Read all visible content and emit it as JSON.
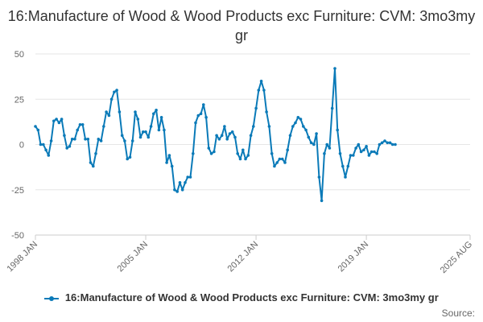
{
  "chart_data": {
    "type": "line",
    "title": "16:Manufacture of Wood & Wood Products exc Furniture: CVM: 3mo3my gr",
    "xlabel": "",
    "ylabel": "",
    "ylim": [
      -50,
      50
    ],
    "yticks": [
      50,
      25,
      0,
      -25,
      -50
    ],
    "xlim": [
      "1998-01",
      "2025-08"
    ],
    "xticks": [
      "1998 JAN",
      "2005 JAN",
      "2012 JAN",
      "2019 JAN",
      "2025 AUG"
    ],
    "grid": true,
    "legend_position": "bottom",
    "color": "#0a7ab8",
    "series": [
      {
        "name": "16:Manufacture of Wood & Wood Products exc Furniture: CVM: 3mo3my gr",
        "points": [
          [
            "1998-01",
            10
          ],
          [
            "1998-03",
            8
          ],
          [
            "1998-05",
            0
          ],
          [
            "1998-07",
            0
          ],
          [
            "1998-09",
            -3
          ],
          [
            "1998-11",
            -6
          ],
          [
            "1999-01",
            2
          ],
          [
            "1999-03",
            13
          ],
          [
            "1999-05",
            14
          ],
          [
            "1999-07",
            12
          ],
          [
            "1999-09",
            14
          ],
          [
            "1999-11",
            5
          ],
          [
            "2000-01",
            -2
          ],
          [
            "2000-03",
            -1
          ],
          [
            "2000-05",
            3
          ],
          [
            "2000-07",
            3
          ],
          [
            "2000-09",
            8
          ],
          [
            "2000-11",
            11
          ],
          [
            "2001-01",
            11
          ],
          [
            "2001-03",
            3
          ],
          [
            "2001-05",
            3
          ],
          [
            "2001-07",
            -10
          ],
          [
            "2001-09",
            -12
          ],
          [
            "2001-11",
            -5
          ],
          [
            "2002-01",
            3
          ],
          [
            "2002-03",
            2
          ],
          [
            "2002-05",
            10
          ],
          [
            "2002-07",
            18
          ],
          [
            "2002-09",
            16
          ],
          [
            "2002-11",
            25
          ],
          [
            "2003-01",
            29
          ],
          [
            "2003-03",
            30
          ],
          [
            "2003-05",
            18
          ],
          [
            "2003-07",
            5
          ],
          [
            "2003-09",
            2
          ],
          [
            "2003-11",
            -8
          ],
          [
            "2004-01",
            -7
          ],
          [
            "2004-03",
            2
          ],
          [
            "2004-05",
            18
          ],
          [
            "2004-07",
            14
          ],
          [
            "2004-09",
            4
          ],
          [
            "2004-11",
            7
          ],
          [
            "2005-01",
            7
          ],
          [
            "2005-03",
            4
          ],
          [
            "2005-05",
            10
          ],
          [
            "2005-07",
            17
          ],
          [
            "2005-09",
            19
          ],
          [
            "2005-11",
            8
          ],
          [
            "2006-01",
            15
          ],
          [
            "2006-03",
            8
          ],
          [
            "2006-05",
            -10
          ],
          [
            "2006-07",
            -6
          ],
          [
            "2006-09",
            -12
          ],
          [
            "2006-11",
            -25
          ],
          [
            "2007-01",
            -26
          ],
          [
            "2007-03",
            -21
          ],
          [
            "2007-05",
            -25
          ],
          [
            "2007-07",
            -21
          ],
          [
            "2007-09",
            -18
          ],
          [
            "2007-11",
            -18
          ],
          [
            "2008-01",
            -5
          ],
          [
            "2008-03",
            12
          ],
          [
            "2008-05",
            16
          ],
          [
            "2008-07",
            17
          ],
          [
            "2008-09",
            22
          ],
          [
            "2008-11",
            15
          ],
          [
            "2009-01",
            -2
          ],
          [
            "2009-03",
            -5
          ],
          [
            "2009-05",
            -4
          ],
          [
            "2009-07",
            5
          ],
          [
            "2009-09",
            3
          ],
          [
            "2009-11",
            5
          ],
          [
            "2010-01",
            10
          ],
          [
            "2010-03",
            3
          ],
          [
            "2010-05",
            6
          ],
          [
            "2010-07",
            7
          ],
          [
            "2010-09",
            4
          ],
          [
            "2010-11",
            -5
          ],
          [
            "2011-01",
            -8
          ],
          [
            "2011-03",
            -3
          ],
          [
            "2011-05",
            -8
          ],
          [
            "2011-07",
            -6
          ],
          [
            "2011-09",
            5
          ],
          [
            "2011-11",
            10
          ],
          [
            "2012-01",
            20
          ],
          [
            "2012-03",
            30
          ],
          [
            "2012-05",
            35
          ],
          [
            "2012-07",
            30
          ],
          [
            "2012-09",
            18
          ],
          [
            "2012-11",
            10
          ],
          [
            "2013-01",
            -5
          ],
          [
            "2013-03",
            -12
          ],
          [
            "2013-05",
            -10
          ],
          [
            "2013-07",
            -8
          ],
          [
            "2013-09",
            -8
          ],
          [
            "2013-11",
            -10
          ],
          [
            "2014-01",
            -3
          ],
          [
            "2014-03",
            5
          ],
          [
            "2014-05",
            10
          ],
          [
            "2014-07",
            12
          ],
          [
            "2014-09",
            15
          ],
          [
            "2014-11",
            14
          ],
          [
            "2015-01",
            10
          ],
          [
            "2015-03",
            8
          ],
          [
            "2015-05",
            4
          ],
          [
            "2015-07",
            1
          ],
          [
            "2015-09",
            0
          ],
          [
            "2015-11",
            6
          ],
          [
            "2016-01",
            -18
          ],
          [
            "2016-03",
            -31
          ],
          [
            "2016-05",
            -5
          ],
          [
            "2016-07",
            0
          ],
          [
            "2016-09",
            -2
          ],
          [
            "2016-11",
            20
          ],
          [
            "2017-01",
            42
          ],
          [
            "2017-03",
            8
          ],
          [
            "2017-05",
            -5
          ],
          [
            "2017-07",
            -12
          ],
          [
            "2017-09",
            -18
          ],
          [
            "2017-11",
            -12
          ],
          [
            "2018-01",
            -6
          ],
          [
            "2018-03",
            -6
          ],
          [
            "2018-05",
            -2
          ],
          [
            "2018-07",
            0
          ],
          [
            "2018-09",
            -4
          ],
          [
            "2018-11",
            -3
          ],
          [
            "2019-01",
            -1
          ],
          [
            "2019-03",
            -6
          ],
          [
            "2019-05",
            -4
          ],
          [
            "2019-07",
            -4
          ],
          [
            "2019-09",
            -5
          ],
          [
            "2019-11",
            0
          ],
          [
            "2020-01",
            1
          ],
          [
            "2020-03",
            2
          ],
          [
            "2020-05",
            1
          ],
          [
            "2020-07",
            1
          ],
          [
            "2020-09",
            0
          ],
          [
            "2020-11",
            0
          ]
        ]
      }
    ]
  },
  "legend": {
    "label": "16:Manufacture of Wood & Wood Products exc Furniture: CVM: 3mo3my gr"
  },
  "footer": {
    "source_label": "Source:"
  }
}
